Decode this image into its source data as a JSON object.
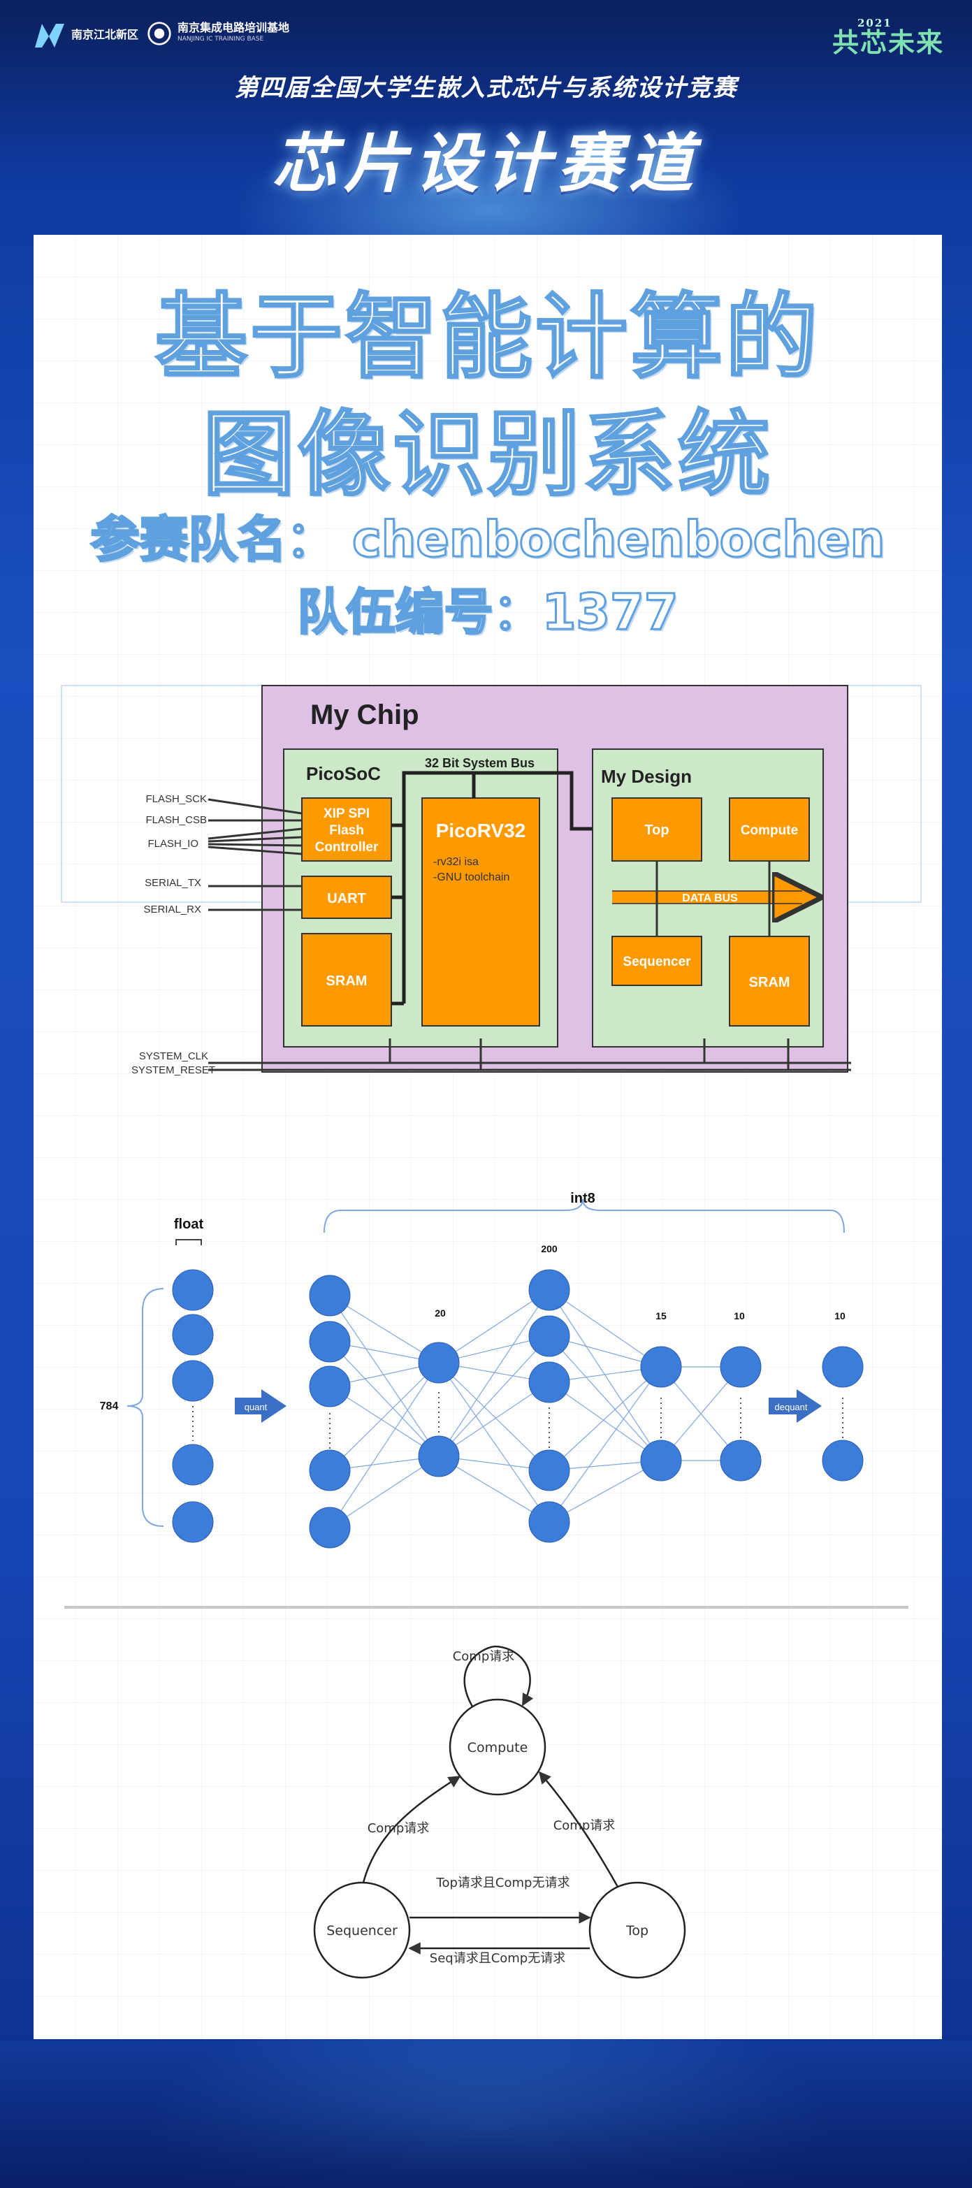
{
  "header": {
    "logo1": {
      "line1": "南京江北新区",
      "line2": ""
    },
    "logo2": {
      "line1": "南京集成电路培训基地",
      "line2": "NANJING IC TRAINING BASE"
    },
    "slogan_year": "2021",
    "slogan": "共芯未来",
    "competition_title": "第四届全国大学生嵌入式芯片与系统设计竞赛",
    "track_title": "芯片设计赛道"
  },
  "project": {
    "title_line1": "基于智能计算的",
    "title_line2": "图像识别系统",
    "team_name": "参赛队名： chenbochenbochen",
    "team_number": "队伍编号：1377"
  },
  "chip": {
    "title": "My Chip",
    "picosoc_label": "PicoSoC",
    "system_bus_label": "32 Bit System Bus",
    "xip_label": [
      "XIP SPI",
      "Flash",
      "Controller"
    ],
    "uart_label": "UART",
    "sram_left_label": "SRAM",
    "cpu_label": "PicoRV32",
    "cpu_notes": [
      "-rv32i isa",
      "-GNU toolchain"
    ],
    "mydesign_label": "My Design",
    "top_label": "Top",
    "compute_label": "Compute",
    "databus_label": "DATA BUS",
    "sequencer_label": "Sequencer",
    "sram_right_label": "SRAM",
    "signals": [
      "FLASH_SCK",
      "FLASH_CSB",
      "FLASH_IO",
      "SERIAL_TX",
      "SERIAL_RX",
      "SYSTEM_CLK",
      "SYSTEM_RESET"
    ]
  },
  "nn": {
    "float_label": "float",
    "int8_label": "int8",
    "input_size": "784",
    "quant_label": "quant",
    "dequant_label": "dequant",
    "layer_sizes": [
      "20",
      "200",
      "15",
      "10",
      "10"
    ]
  },
  "fsm": {
    "compute_state": "Compute",
    "sequencer_state": "Sequencer",
    "top_state": "Top",
    "self_loop_label": "Comp请求",
    "seq_to_comp_label": "Comp请求",
    "top_to_comp_label": "Comp请求",
    "seq_to_top_label": "Top请求且Comp无请求",
    "top_to_seq_label": "Seq请求且Comp无请求"
  },
  "colors": {
    "orange": "#ff9900",
    "green": "#cde8c8",
    "purple": "#dfc1e6",
    "node": "#3b7dd8",
    "outline_text": "#5fa0de"
  }
}
